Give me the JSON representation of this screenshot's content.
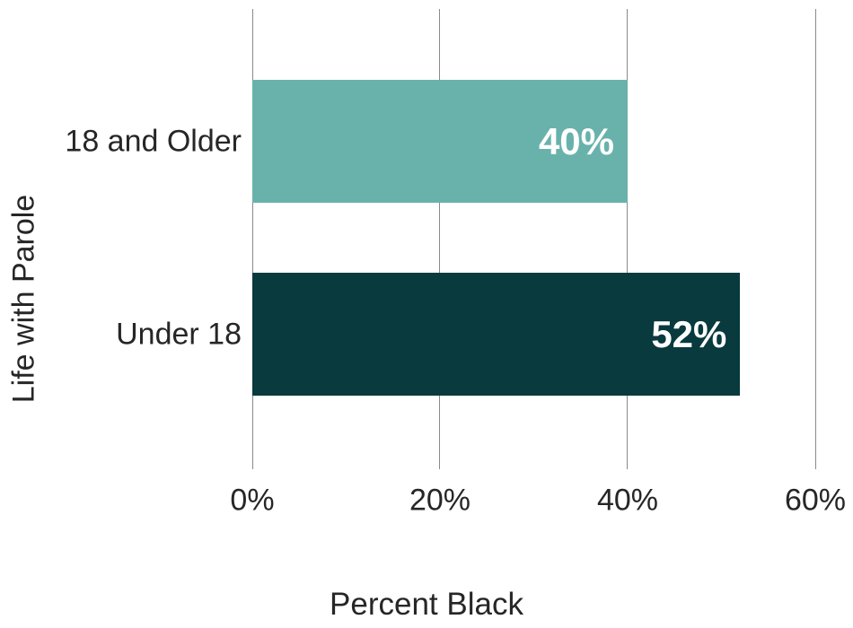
{
  "chart_data": {
    "type": "bar",
    "orientation": "horizontal",
    "categories": [
      "18 and Older",
      "Under 18"
    ],
    "values": [
      40,
      52
    ],
    "value_labels": [
      "40%",
      "52%"
    ],
    "bar_colors": [
      "#69b2ac",
      "#083a3e"
    ],
    "xlabel": "Percent Black",
    "ylabel": "Life with Parole",
    "xlim": [
      0,
      60
    ],
    "xticks": [
      0,
      20,
      40,
      60
    ],
    "xtick_labels": [
      "0%",
      "20%",
      "40%",
      "60%"
    ],
    "grid": "vertical",
    "legend": "none"
  },
  "colors": {
    "gridline": "#8a8a8a",
    "text": "#262626",
    "value_label_text": "#ffffff",
    "background": "#ffffff"
  }
}
